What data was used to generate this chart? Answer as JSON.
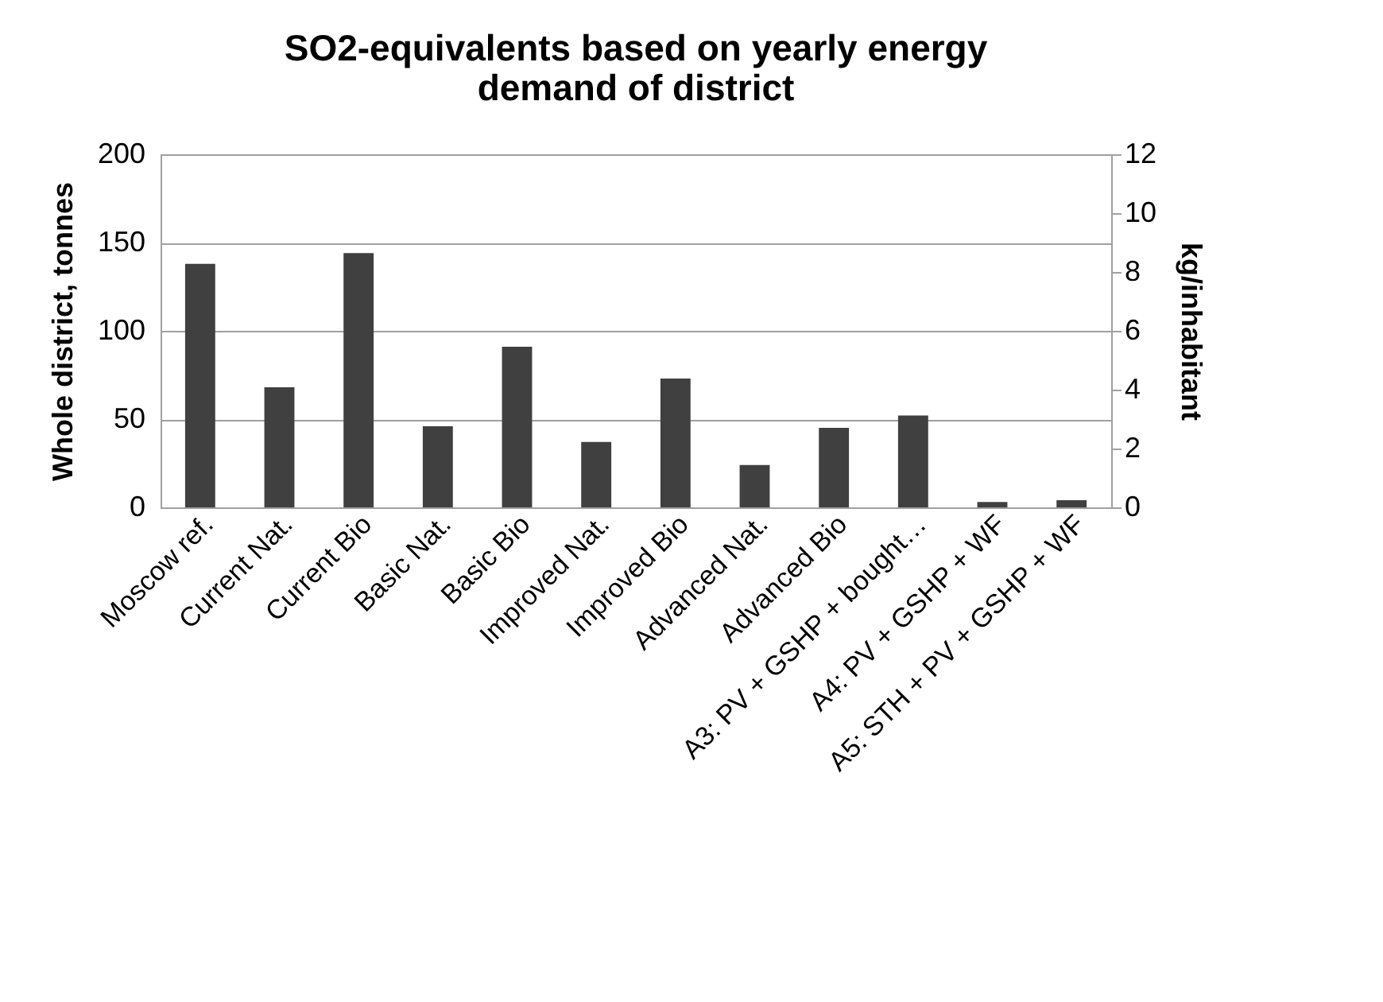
{
  "chart_data": {
    "type": "bar",
    "title": "SO2-equivalents based on yearly energy demand of district",
    "categories": [
      "Moscow ref.",
      "Current Nat.",
      "Current Bio",
      "Basic Nat.",
      "Basic Bio",
      "Improved Nat.",
      "Improved Bio",
      "Advanced Nat.",
      "Advanced Bio",
      "A3: PV + GSHP + bought…",
      "A4: PV + GSHP + WF",
      "A5: STH + PV + GSHP + WF"
    ],
    "series": [
      {
        "color": "#404040",
        "values": [
          138,
          68,
          144,
          46,
          91,
          37,
          73,
          24,
          45,
          52,
          3,
          4
        ]
      }
    ],
    "ylabel": "Whole district, tonnes",
    "y2label": "kg/inhabitant",
    "ylim": [
      0,
      200
    ],
    "yticks": [
      0,
      50,
      100,
      150,
      200
    ],
    "y2lim": [
      0,
      12
    ],
    "y2ticks": [
      0,
      2,
      4,
      6,
      8,
      10,
      12
    ],
    "grid": "y",
    "legend": false
  }
}
